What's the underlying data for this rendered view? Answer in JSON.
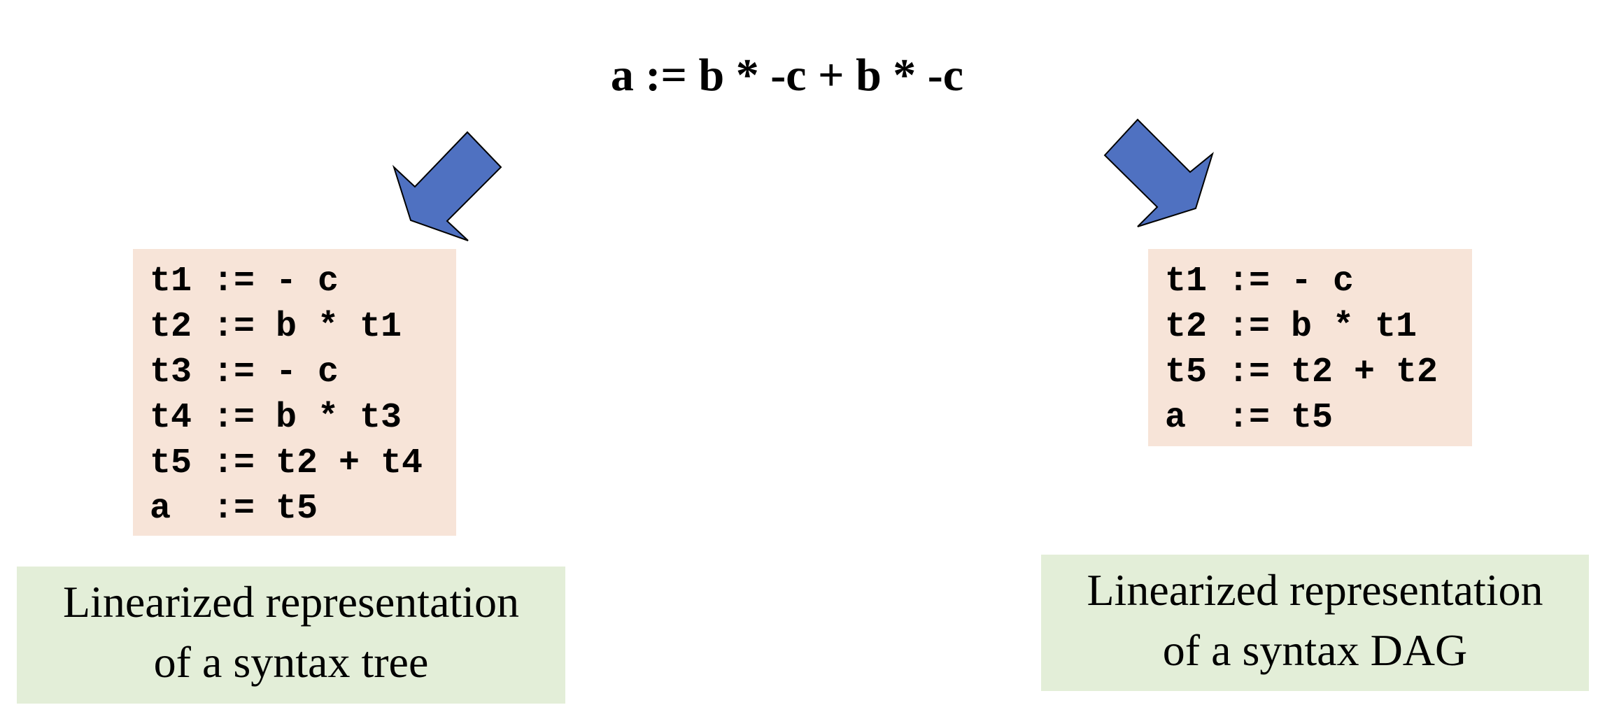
{
  "title": "a := b * -c + b * -c",
  "arrow_color": "#4f71c1",
  "code_tree": {
    "lines": [
      "t1 := - c",
      "t2 := b * t1",
      "t3 := - c",
      "t4 := b * t3",
      "t5 := t2 + t4",
      "a  := t5"
    ]
  },
  "code_dag": {
    "lines": [
      "t1 := - c",
      "t2 := b * t1",
      "t5 := t2 + t2",
      "a  := t5"
    ]
  },
  "caption_tree": {
    "line1": "Linearized representation",
    "line2": "of a syntax tree"
  },
  "caption_dag": {
    "line1": "Linearized representation",
    "line2": "of a syntax DAG"
  }
}
